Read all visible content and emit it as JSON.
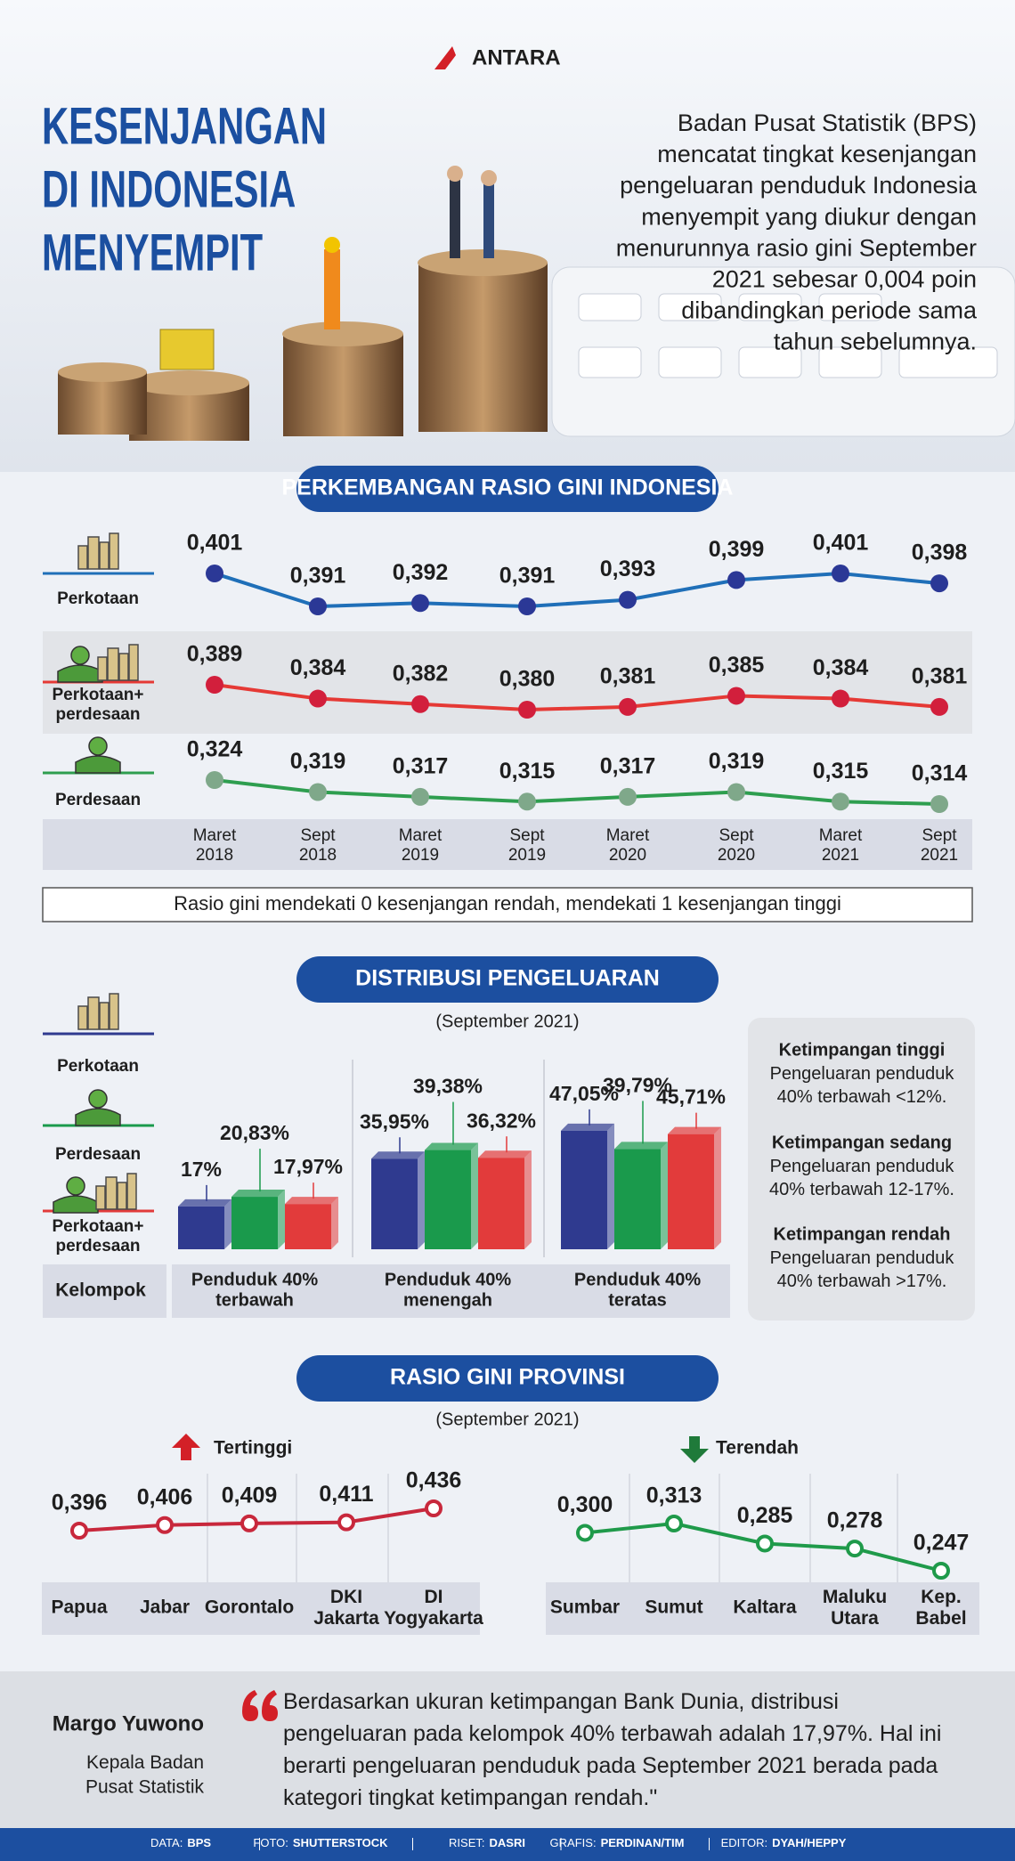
{
  "header": {
    "brand": "ANTARA",
    "title": [
      "KESENJANGAN",
      "DI INDONESIA",
      "MENYEMPIT"
    ],
    "description": "Badan Pusat Statistik (BPS)\nmencatat tingkat kesenjangan\npengeluaran penduduk Indonesia\nmenyempit yang diukur dengan\nmenurunnya rasio gini September\n2021 sebesar 0,004 poin\ndibandingkan periode sama\ntahun sebelumnya."
  },
  "chart_data": [
    {
      "type": "line",
      "title": "PERKEMBANGAN RASIO GINI INDONESIA",
      "categories": [
        "Maret\n2018",
        "Sept\n2018",
        "Maret\n2019",
        "Sept\n2019",
        "Maret\n2020",
        "Sept\n2020",
        "Maret\n2021",
        "Sept\n2021"
      ],
      "series": [
        {
          "name": "Perkotaan",
          "color": "#1f6fb8",
          "marker_color": "#2b3896",
          "values": [
            0.401,
            0.391,
            0.392,
            0.391,
            0.393,
            0.399,
            0.401,
            0.398
          ],
          "value_labels": [
            "0,401",
            "0,391",
            "0,392",
            "0,391",
            "0,393",
            "0,399",
            "0,401",
            "0,398"
          ]
        },
        {
          "name": "Perkotaan+\nperdesaan",
          "color": "#e53935",
          "marker_color": "#d21f3c",
          "values": [
            0.389,
            0.384,
            0.382,
            0.38,
            0.381,
            0.385,
            0.384,
            0.381
          ],
          "value_labels": [
            "0,389",
            "0,384",
            "0,382",
            "0,380",
            "0,381",
            "0,385",
            "0,384",
            "0,381"
          ]
        },
        {
          "name": "Perdesaan",
          "color": "#2e9e4f",
          "marker_color": "#7fa88a",
          "values": [
            0.324,
            0.319,
            0.317,
            0.315,
            0.317,
            0.319,
            0.315,
            0.314
          ],
          "value_labels": [
            "0,324",
            "0,319",
            "0,317",
            "0,315",
            "0,317",
            "0,319",
            "0,315",
            "0,314"
          ]
        }
      ],
      "note": "Rasio gini mendekati 0 kesenjangan rendah, mendekati 1 kesenjangan tinggi"
    },
    {
      "type": "bar",
      "title": "DISTRIBUSI PENGELUARAN",
      "subtitle": "(September 2021)",
      "x_label": "Kelompok",
      "categories": [
        "Penduduk 40%\nterbawah",
        "Penduduk 40%\nmenengah",
        "Penduduk 40%\nteratas"
      ],
      "series": [
        {
          "name": "Perkotaan",
          "color": "#2f3a8f",
          "values": [
            17,
            35.95,
            47.05
          ],
          "value_labels": [
            "17%",
            "35,95%",
            "47,05%"
          ]
        },
        {
          "name": "Perdesaan",
          "color": "#1a9a4c",
          "values": [
            20.83,
            39.38,
            39.79
          ],
          "value_labels": [
            "20,83%",
            "39,38%",
            "39,79%"
          ]
        },
        {
          "name": "Perkotaan+\nperdesaan",
          "color": "#e23b3b",
          "values": [
            17.97,
            36.32,
            45.71
          ],
          "value_labels": [
            "17,97%",
            "36,32%",
            "45,71%"
          ]
        }
      ],
      "notes": [
        {
          "title": "Ketimpangan tinggi",
          "text": "Pengeluaran penduduk\n40% terbawah <12%."
        },
        {
          "title": "Ketimpangan sedang",
          "text": "Pengeluaran penduduk\n40% terbawah 12-17%."
        },
        {
          "title": "Ketimpangan rendah",
          "text": "Pengeluaran penduduk\n40% terbawah >17%."
        }
      ]
    },
    {
      "type": "line",
      "title": "RASIO GINI PROVINSI",
      "subtitle": "(September 2021)",
      "categories": [
        "Papua",
        "Jabar",
        "Gorontalo",
        "DKI\nJakarta",
        "DI\nYogyakarta"
      ],
      "series": [
        {
          "name": "Tertinggi",
          "color": "#c8283c",
          "values": [
            0.396,
            0.406,
            0.409,
            0.411,
            0.436
          ],
          "value_labels": [
            "0,396",
            "0,406",
            "0,409",
            "0,411",
            "0,436"
          ]
        }
      ]
    },
    {
      "type": "line",
      "categories": [
        "Sumbar",
        "Sumut",
        "Kaltara",
        "Maluku\nUtara",
        "Kep.\nBabel"
      ],
      "series": [
        {
          "name": "Terendah",
          "color": "#1f9a4a",
          "values": [
            0.3,
            0.313,
            0.285,
            0.278,
            0.247
          ],
          "value_labels": [
            "0,300",
            "0,313",
            "0,285",
            "0,278",
            "0,247"
          ]
        }
      ]
    }
  ],
  "quote": {
    "name": "Margo Yuwono",
    "role": "Kepala Badan\nPusat Statistik",
    "text": "Berdasarkan ukuran ketimpangan Bank Dunia, distribusi\npengeluaran pada kelompok 40% terbawah adalah 17,97%. Hal ini\nberarti pengeluaran penduduk pada September 2021 berada pada\nkategori tingkat ketimpangan rendah.\""
  },
  "footer": [
    {
      "label": "DATA:",
      "value": "BPS"
    },
    {
      "label": "FOTO:",
      "value": "SHUTTERSTOCK"
    },
    {
      "label": "RISET:",
      "value": "DASRI"
    },
    {
      "label": "GRAFIS:",
      "value": "PERDINAN/TIM"
    },
    {
      "label": "EDITOR:",
      "value": "DYAH/HEPPY"
    }
  ]
}
